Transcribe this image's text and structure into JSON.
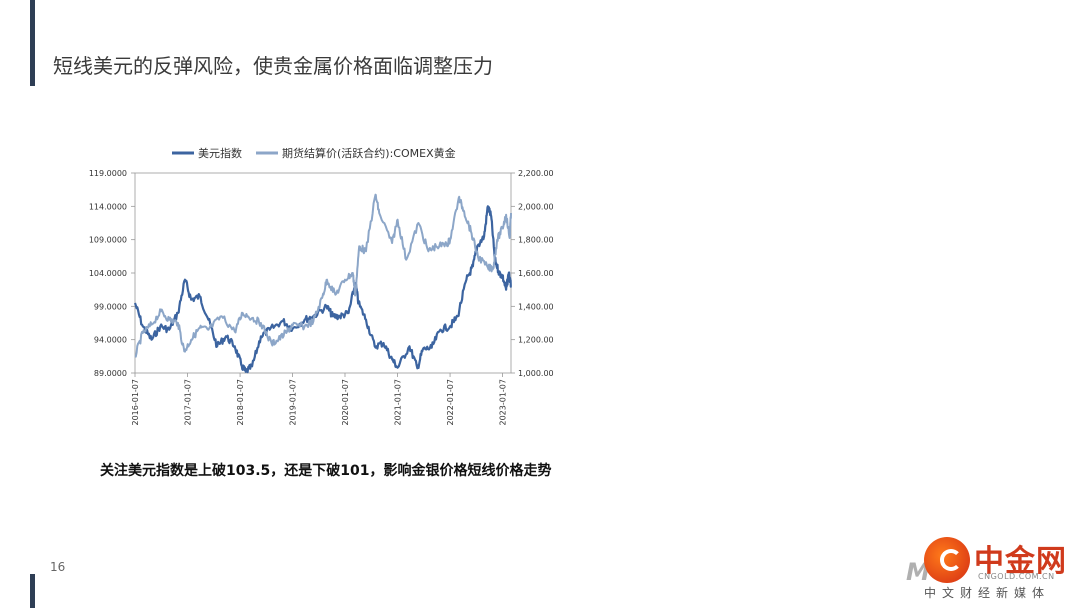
{
  "slide": {
    "title": "短线美元的反弹风险，使贵金属价格面临调整压力",
    "caption": "关注美元指数是上破103.5，还是下破101，影响金银价格短线价格走势",
    "page_number": "16"
  },
  "logo": {
    "brand_cn": "中金网",
    "url": "CNGOLD.COM.CN",
    "tagline": "中文财经新媒体"
  },
  "chart_data": {
    "type": "line",
    "legend_position": "top",
    "grid": false,
    "x_ticks": [
      "2016-01-07",
      "2017-01-07",
      "2018-01-07",
      "2019-01-07",
      "2020-01-07",
      "2021-01-07",
      "2022-01-07",
      "2023-01-07"
    ],
    "y_left_ticks": [
      "89.0000",
      "94.0000",
      "99.0000",
      "104.0000",
      "109.0000",
      "114.0000",
      "119.0000"
    ],
    "y_right_ticks": [
      "1,000.00",
      "1,200.00",
      "1,400.00",
      "1,600.00",
      "1,800.00",
      "2,000.00",
      "2,200.00"
    ],
    "y_left_range": [
      89,
      119
    ],
    "y_right_range": [
      1000,
      2200
    ],
    "x_range": [
      "2016-01-07",
      "2023-03-07"
    ],
    "series": [
      {
        "name": "美元指数",
        "axis": "left",
        "color": "#3c64a0",
        "points": [
          [
            "2016-01-07",
            99.5
          ],
          [
            "2016-03-01",
            96.0
          ],
          [
            "2016-05-01",
            94.0
          ],
          [
            "2016-07-01",
            96.0
          ],
          [
            "2016-09-01",
            95.5
          ],
          [
            "2016-11-01",
            98.0
          ],
          [
            "2016-12-20",
            103.0
          ],
          [
            "2017-02-01",
            100.0
          ],
          [
            "2017-04-01",
            100.5
          ],
          [
            "2017-06-01",
            97.0
          ],
          [
            "2017-08-01",
            93.0
          ],
          [
            "2017-10-01",
            94.5
          ],
          [
            "2017-12-01",
            93.0
          ],
          [
            "2018-01-20",
            90.0
          ],
          [
            "2018-02-15",
            89.2
          ],
          [
            "2018-04-01",
            90.0
          ],
          [
            "2018-06-01",
            94.5
          ],
          [
            "2018-08-01",
            95.5
          ],
          [
            "2018-11-01",
            96.8
          ],
          [
            "2019-01-07",
            95.6
          ],
          [
            "2019-04-01",
            97.0
          ],
          [
            "2019-06-01",
            97.5
          ],
          [
            "2019-09-01",
            99.0
          ],
          [
            "2019-10-15",
            97.5
          ],
          [
            "2019-12-01",
            97.5
          ],
          [
            "2020-02-01",
            98.0
          ],
          [
            "2020-03-20",
            102.5
          ],
          [
            "2020-04-10",
            99.5
          ],
          [
            "2020-06-01",
            97.0
          ],
          [
            "2020-08-01",
            93.0
          ],
          [
            "2020-10-01",
            93.5
          ],
          [
            "2020-12-01",
            91.0
          ],
          [
            "2021-01-07",
            89.8
          ],
          [
            "2021-03-31",
            93.0
          ],
          [
            "2021-05-25",
            89.7
          ],
          [
            "2021-07-01",
            92.5
          ],
          [
            "2021-09-01",
            92.8
          ],
          [
            "2021-11-01",
            95.5
          ],
          [
            "2022-01-07",
            96.0
          ],
          [
            "2022-03-01",
            97.5
          ],
          [
            "2022-05-01",
            103.0
          ],
          [
            "2022-06-15",
            105.0
          ],
          [
            "2022-07-15",
            108.0
          ],
          [
            "2022-09-01",
            109.5
          ],
          [
            "2022-09-27",
            114.0
          ],
          [
            "2022-10-20",
            112.5
          ],
          [
            "2022-11-15",
            106.0
          ],
          [
            "2022-12-15",
            104.0
          ],
          [
            "2023-01-07",
            103.5
          ],
          [
            "2023-02-01",
            101.5
          ],
          [
            "2023-02-20",
            104.0
          ],
          [
            "2023-03-07",
            102.0
          ]
        ]
      },
      {
        "name": "期货结算价(活跃合约):COMEX黄金",
        "axis": "right",
        "color": "#8ca6c8",
        "points": [
          [
            "2016-01-07",
            1100
          ],
          [
            "2016-03-01",
            1240
          ],
          [
            "2016-05-01",
            1290
          ],
          [
            "2016-07-06",
            1370
          ],
          [
            "2016-09-01",
            1320
          ],
          [
            "2016-11-01",
            1300
          ],
          [
            "2016-12-15",
            1130
          ],
          [
            "2017-02-01",
            1200
          ],
          [
            "2017-04-01",
            1270
          ],
          [
            "2017-06-01",
            1260
          ],
          [
            "2017-09-01",
            1340
          ],
          [
            "2017-12-01",
            1250
          ],
          [
            "2018-01-25",
            1360
          ],
          [
            "2018-04-01",
            1330
          ],
          [
            "2018-06-01",
            1300
          ],
          [
            "2018-08-15",
            1175
          ],
          [
            "2018-10-01",
            1200
          ],
          [
            "2018-12-01",
            1250
          ],
          [
            "2019-01-07",
            1285
          ],
          [
            "2019-04-01",
            1280
          ],
          [
            "2019-06-01",
            1310
          ],
          [
            "2019-08-01",
            1450
          ],
          [
            "2019-09-04",
            1560
          ],
          [
            "2019-11-01",
            1470
          ],
          [
            "2020-01-07",
            1560
          ],
          [
            "2020-03-01",
            1600
          ],
          [
            "2020-03-19",
            1470
          ],
          [
            "2020-04-15",
            1760
          ],
          [
            "2020-06-01",
            1730
          ],
          [
            "2020-08-06",
            2070
          ],
          [
            "2020-09-01",
            1960
          ],
          [
            "2020-11-30",
            1780
          ],
          [
            "2021-01-07",
            1920
          ],
          [
            "2021-03-08",
            1680
          ],
          [
            "2021-06-01",
            1900
          ],
          [
            "2021-08-09",
            1730
          ],
          [
            "2021-10-01",
            1760
          ],
          [
            "2021-12-15",
            1770
          ],
          [
            "2022-01-07",
            1800
          ],
          [
            "2022-03-08",
            2050
          ],
          [
            "2022-04-15",
            1970
          ],
          [
            "2022-06-01",
            1850
          ],
          [
            "2022-07-20",
            1700
          ],
          [
            "2022-09-28",
            1630
          ],
          [
            "2022-11-03",
            1630
          ],
          [
            "2022-12-01",
            1800
          ],
          [
            "2023-01-07",
            1870
          ],
          [
            "2023-02-01",
            1950
          ],
          [
            "2023-02-25",
            1810
          ],
          [
            "2023-03-07",
            1960
          ]
        ]
      }
    ]
  }
}
